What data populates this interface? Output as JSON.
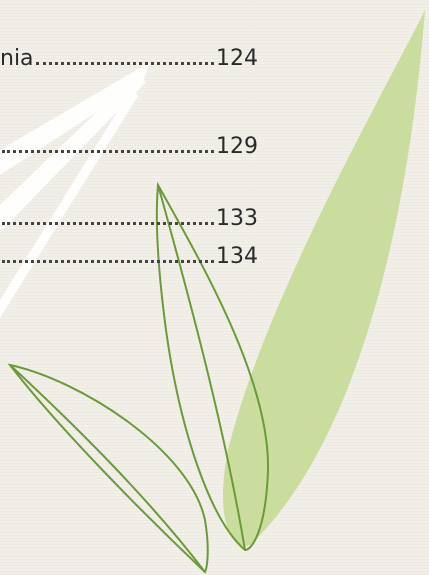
{
  "toc": {
    "entries": [
      {
        "label": "nia",
        "page": "124"
      },
      {
        "page": "129"
      },
      {
        "page": "133"
      },
      {
        "page": "134"
      }
    ]
  }
}
